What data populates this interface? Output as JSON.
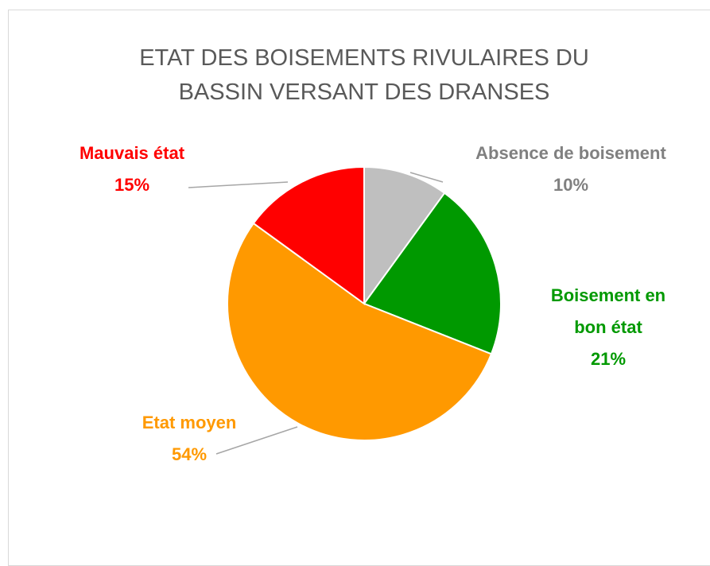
{
  "chart_data": {
    "type": "pie",
    "title": "ETAT DES BOISEMENTS RIVULAIRES DU BASSIN VERSANT DES DRANSES",
    "categories": [
      "Absence de boisement",
      "Boisement en bon état",
      "Etat moyen",
      "Mauvais état"
    ],
    "values": [
      10,
      21,
      54,
      15
    ],
    "value_labels": [
      "10%",
      "21%",
      "54%",
      "15%"
    ],
    "colors": [
      "#bfbfbf",
      "#009900",
      "#ff9900",
      "#ff0000"
    ]
  }
}
